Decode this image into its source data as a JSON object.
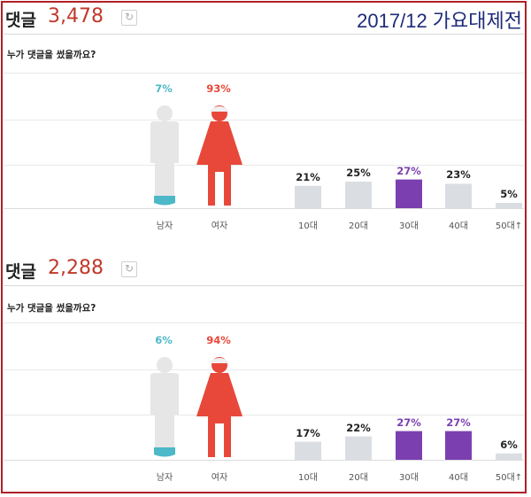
{
  "event_title": "2017/12 가요대제전",
  "panels": [
    {
      "comment_label": "댓글",
      "comment_count": "3,478",
      "question": "누가 댓글을 썼을까요?",
      "gender": {
        "male_pct": "7%",
        "female_pct": "93%",
        "male_label": "남자",
        "female_label": "여자",
        "male_value": 7,
        "female_value": 93
      },
      "age_pct_labels": [
        "21%",
        "25%",
        "27%",
        "23%",
        "5%"
      ]
    },
    {
      "comment_label": "댓글",
      "comment_count": "2,288",
      "question": "누가 댓글을 썼을까요?",
      "gender": {
        "male_pct": "6%",
        "female_pct": "94%",
        "male_label": "남자",
        "female_label": "여자",
        "male_value": 6,
        "female_value": 94
      },
      "age_pct_labels": [
        "17%",
        "22%",
        "27%",
        "27%",
        "6%"
      ]
    }
  ],
  "colors": {
    "male": "#4db8c8",
    "female": "#e8483a",
    "bar_default": "#dadee3",
    "bar_highlight": "#7b3fb0",
    "pct_default": "#222222"
  },
  "chart_data": [
    {
      "type": "bar",
      "title": "",
      "categories": [
        "10대",
        "20대",
        "30대",
        "40대",
        "50대↑"
      ],
      "values": [
        21,
        25,
        27,
        23,
        5
      ],
      "highlight": [
        false,
        false,
        true,
        false,
        false
      ],
      "gender": {
        "categories": [
          "남자",
          "여자"
        ],
        "values": [
          7,
          93
        ]
      },
      "xlabel": "",
      "ylabel": "",
      "grid": true
    },
    {
      "type": "bar",
      "title": "",
      "categories": [
        "10대",
        "20대",
        "30대",
        "40대",
        "50대↑"
      ],
      "values": [
        17,
        22,
        27,
        27,
        6
      ],
      "highlight": [
        false,
        false,
        true,
        true,
        false
      ],
      "gender": {
        "categories": [
          "남자",
          "여자"
        ],
        "values": [
          6,
          94
        ]
      },
      "xlabel": "",
      "ylabel": "",
      "grid": true
    }
  ]
}
